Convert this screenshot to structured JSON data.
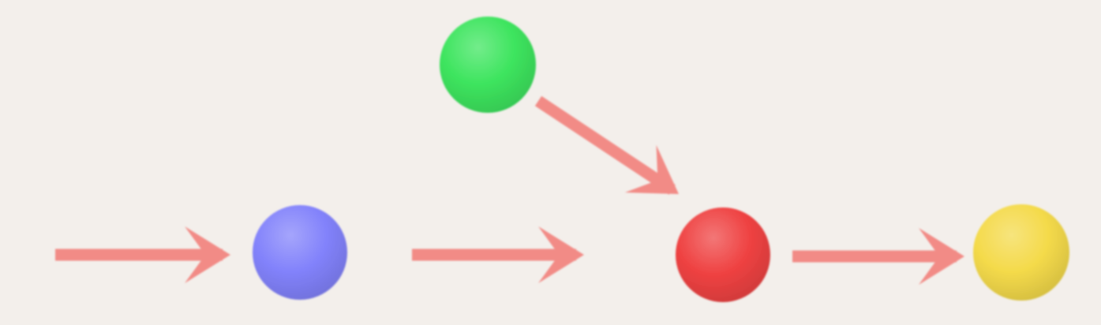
{
  "diagram": {
    "background_color": "#f3efeb",
    "arrow_color": "#f28b86",
    "nodes": [
      {
        "id": "blue-node",
        "color": "#8282fb"
      },
      {
        "id": "green-node",
        "color": "#3de45e"
      },
      {
        "id": "red-node",
        "color": "#ef4242"
      },
      {
        "id": "yellow-node",
        "color": "#f4da4a"
      }
    ],
    "edges": [
      {
        "id": "entry-arrow",
        "from": null,
        "to": "blue-node"
      },
      {
        "id": "blue-to-red-arrow",
        "from": "blue-node",
        "to": "red-node"
      },
      {
        "id": "green-to-red-arrow",
        "from": "green-node",
        "to": "red-node"
      },
      {
        "id": "red-to-yellow-arrow",
        "from": "red-node",
        "to": "yellow-node"
      }
    ]
  }
}
